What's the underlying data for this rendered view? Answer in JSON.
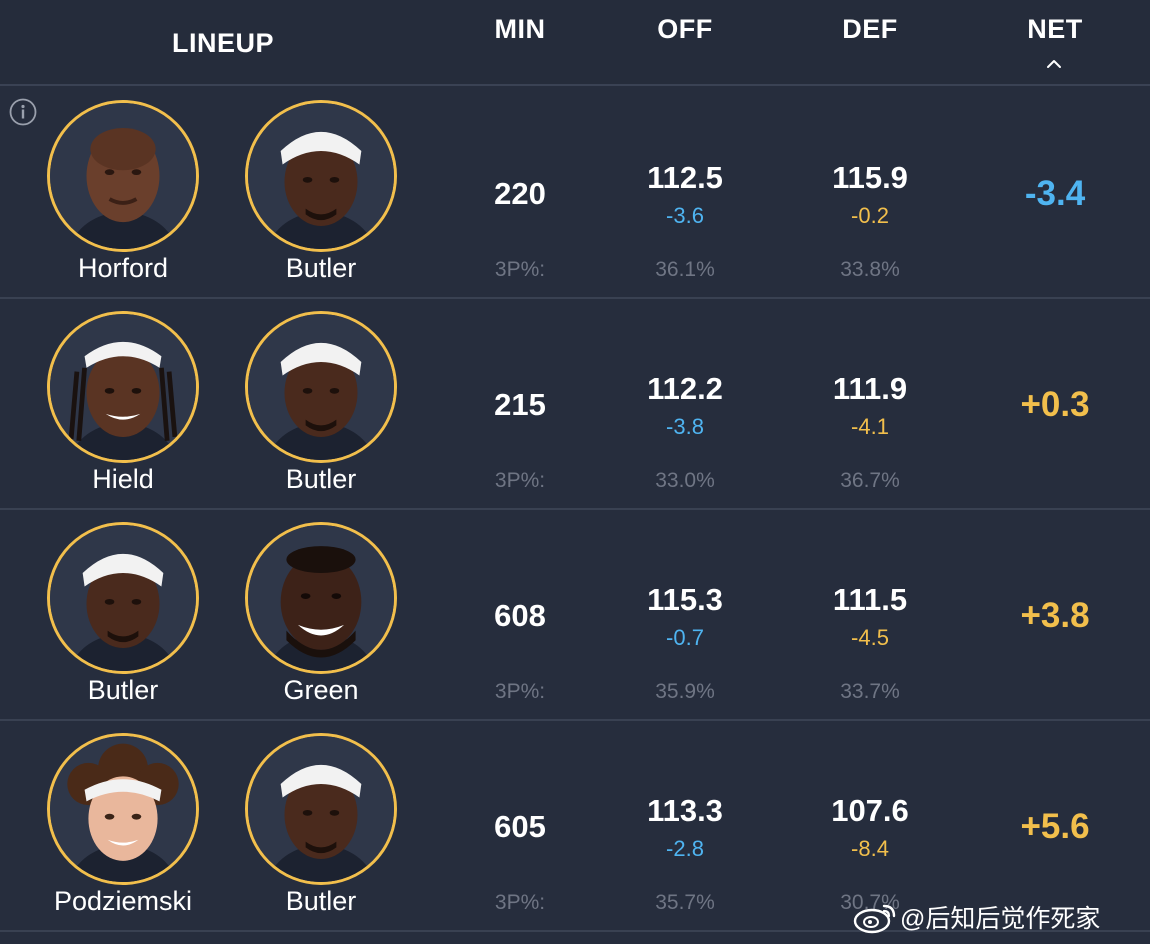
{
  "header": {
    "lineup": "LINEUP",
    "min": "MIN",
    "off": "OFF",
    "def": "DEF",
    "net": "NET",
    "sort_icon": "chevron-up-icon"
  },
  "colors": {
    "background": "#262d3d",
    "accent_gold": "#f2bf4c",
    "accent_blue": "#4fb4f1",
    "muted_text": "#6f7584"
  },
  "rows": [
    {
      "players": [
        "Horford",
        "Butler"
      ],
      "min": "220",
      "off": "112.5",
      "off_diff": "-3.6",
      "def": "115.9",
      "def_diff": "-0.2",
      "net": "-3.4",
      "net_sign": "negative",
      "three_label": "3P%:",
      "three_off": "36.1%",
      "three_def": "33.8%"
    },
    {
      "players": [
        "Hield",
        "Butler"
      ],
      "min": "215",
      "off": "112.2",
      "off_diff": "-3.8",
      "def": "111.9",
      "def_diff": "-4.1",
      "net": "+0.3",
      "net_sign": "positive",
      "three_label": "3P%:",
      "three_off": "33.0%",
      "three_def": "36.7%"
    },
    {
      "players": [
        "Butler",
        "Green"
      ],
      "min": "608",
      "off": "115.3",
      "off_diff": "-0.7",
      "def": "111.5",
      "def_diff": "-4.5",
      "net": "+3.8",
      "net_sign": "positive",
      "three_label": "3P%:",
      "three_off": "35.9%",
      "three_def": "33.7%"
    },
    {
      "players": [
        "Podziemski",
        "Butler"
      ],
      "min": "605",
      "off": "113.3",
      "off_diff": "-2.8",
      "def": "107.6",
      "def_diff": "-8.4",
      "net": "+5.6",
      "net_sign": "positive",
      "three_label": "3P%:",
      "three_off": "35.7%",
      "three_def": "30.7%"
    }
  ],
  "watermark": {
    "text": "@后知后觉作死家",
    "icon": "weibo-icon"
  }
}
